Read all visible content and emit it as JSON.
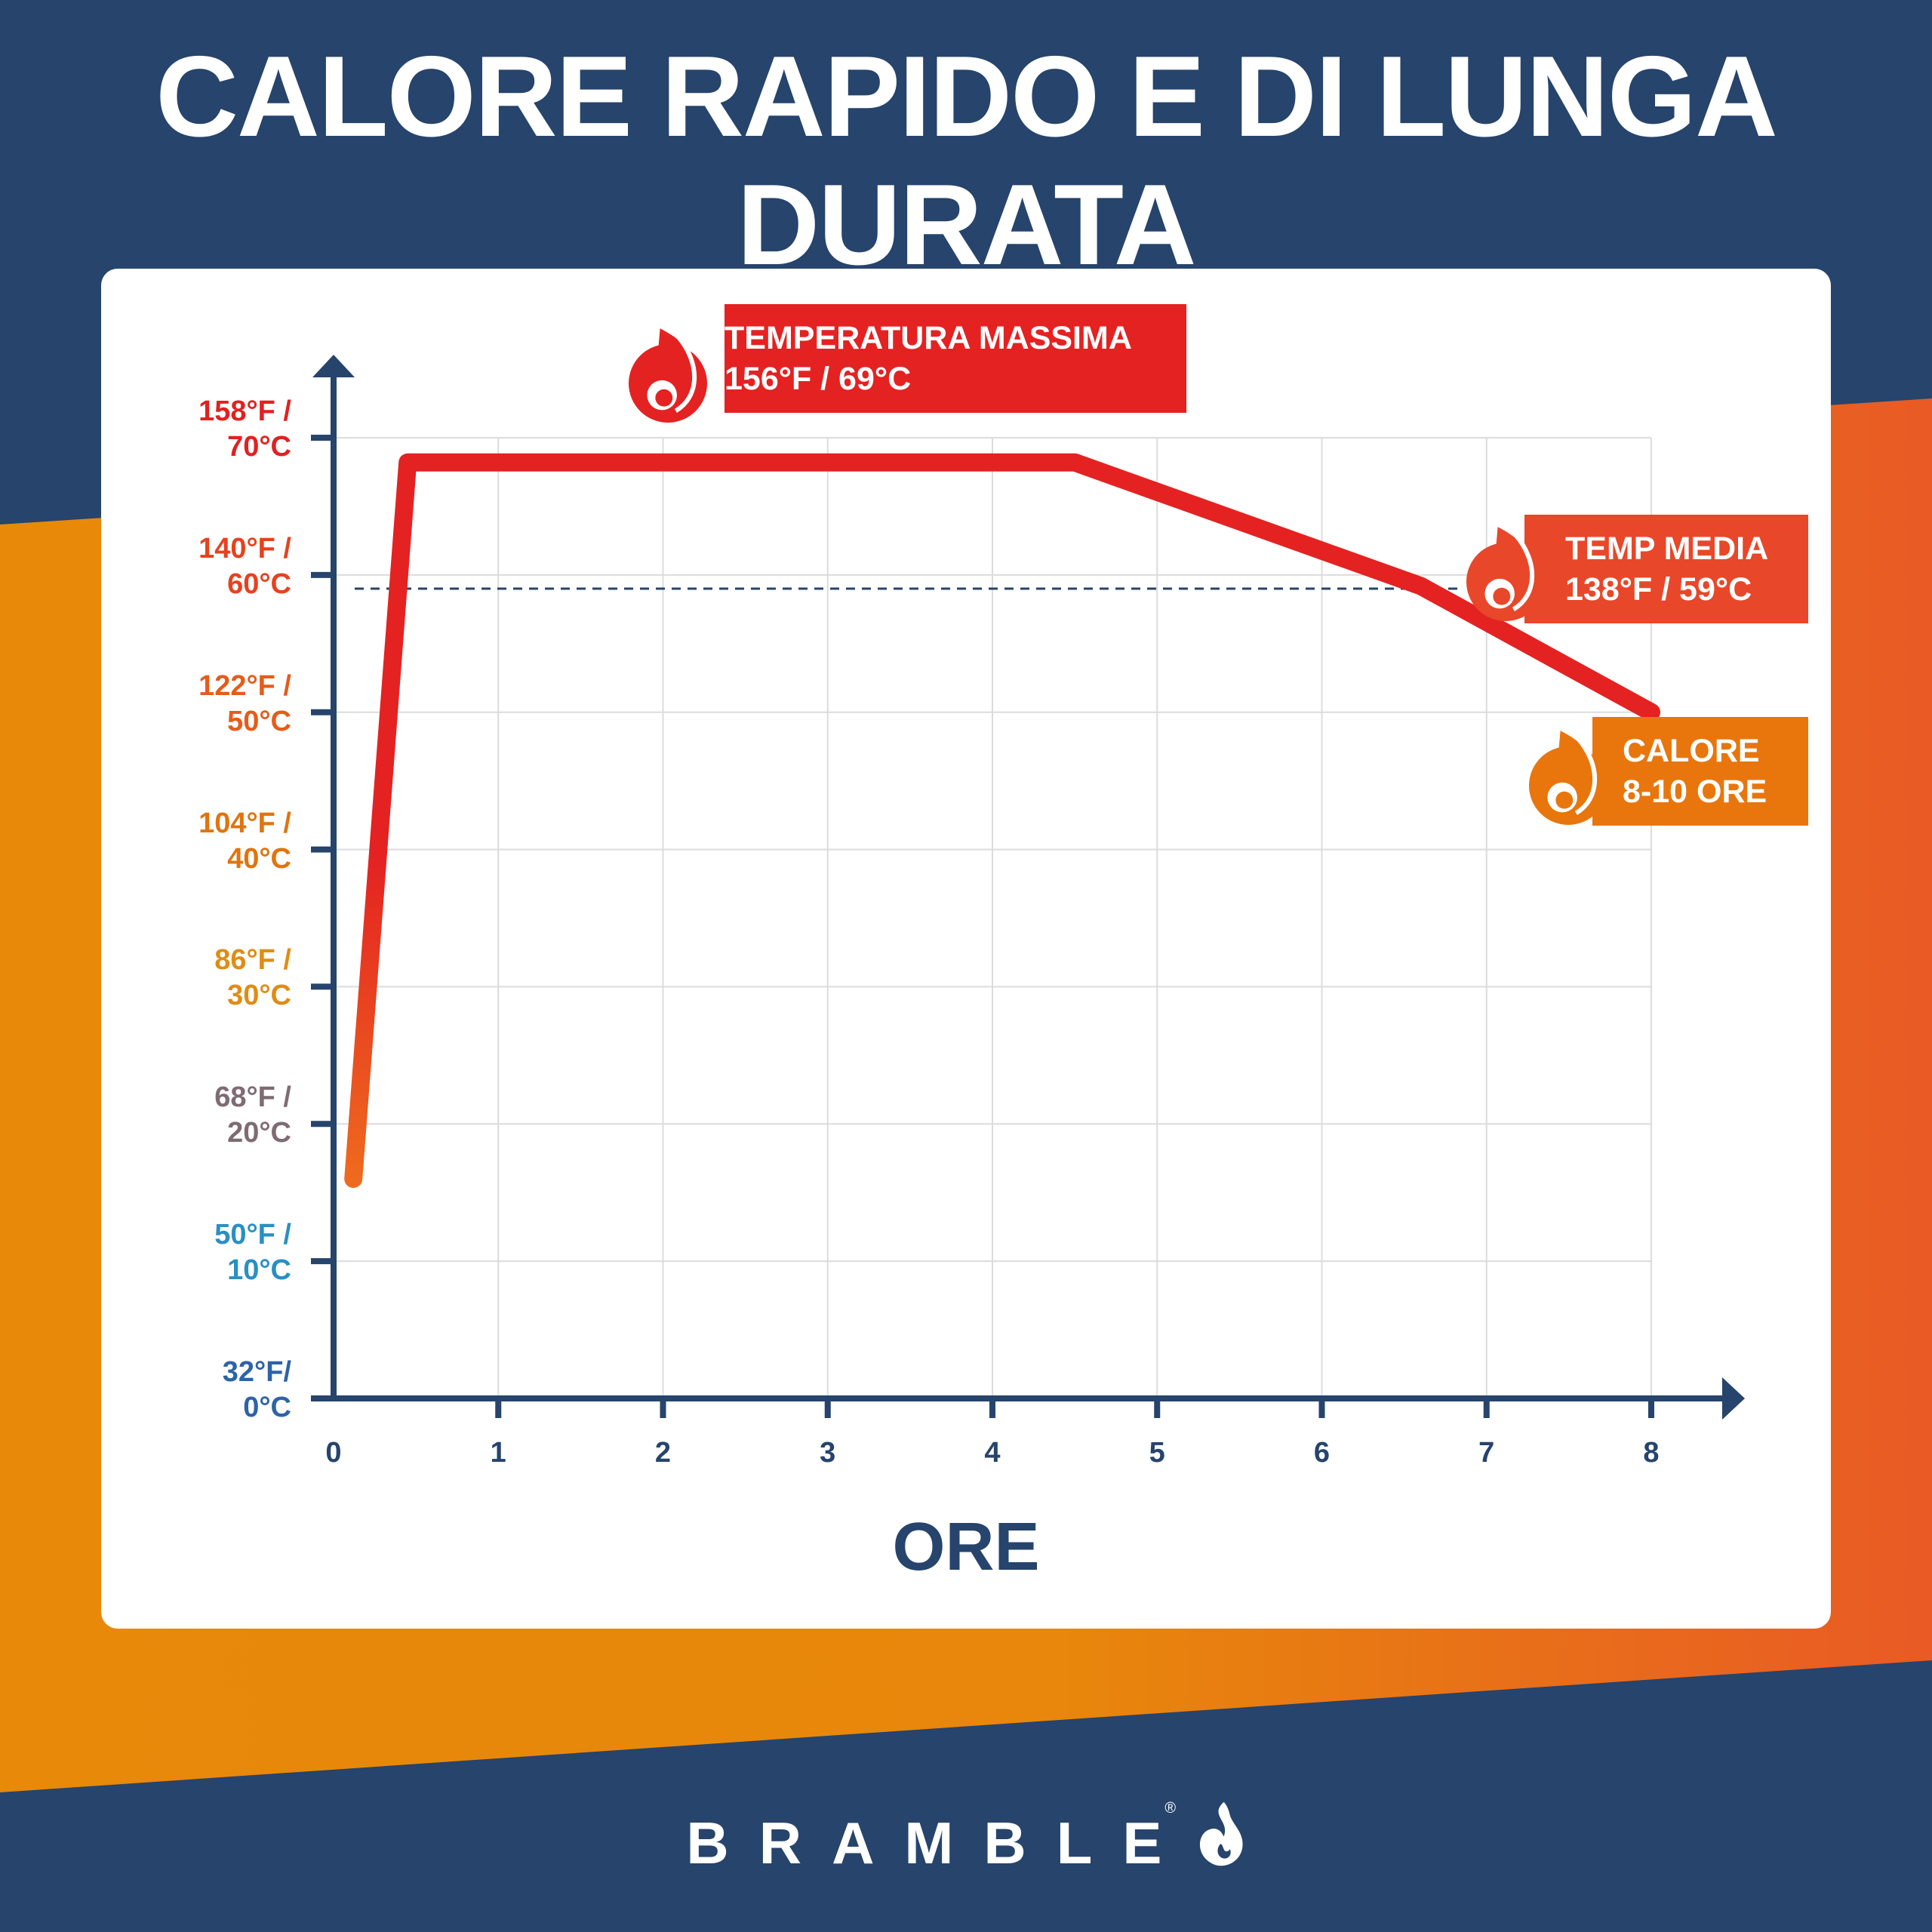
{
  "header": {
    "title_line1": "CALORE RAPIDO E DI LUNGA",
    "title_line2": "DURATA"
  },
  "colors": {
    "navy": "#26446c",
    "orange": "#e8890a",
    "red": "#e42222",
    "avg_red": "#e8472a",
    "heat_orange": "#e8760d"
  },
  "chart_data": {
    "type": "line",
    "title": "",
    "xlabel": "ORE",
    "ylabel": "",
    "x_ticks": [
      "0",
      "1",
      "2",
      "3",
      "4",
      "5",
      "6",
      "7",
      "8"
    ],
    "y_ticks": [
      {
        "f": "32°F/",
        "c": "0°C",
        "color": "#2d63a8"
      },
      {
        "f": "50°F /",
        "c": "10°C",
        "color": "#2a8fc4"
      },
      {
        "f": "68°F /",
        "c": "20°C",
        "color": "#7e6b73"
      },
      {
        "f": "86°F /",
        "c": "30°C",
        "color": "#e08c14"
      },
      {
        "f": "104°F /",
        "c": "40°C",
        "color": "#e0740f"
      },
      {
        "f": "122°F /",
        "c": "50°C",
        "color": "#e55c1a"
      },
      {
        "f": "140°F /",
        "c": "60°C",
        "color": "#e5421f"
      },
      {
        "f": "158°F /",
        "c": "70°C",
        "color": "#e12121"
      }
    ],
    "xlim": [
      0,
      8
    ],
    "ylim": [
      0,
      70
    ],
    "grid": true,
    "series": [
      {
        "x": [
          0.12,
          0.45,
          4.5,
          6.6,
          8.0
        ],
        "y": [
          16,
          68.2,
          68.2,
          59.2,
          50
        ]
      }
    ],
    "reference_line": {
      "y": 59,
      "style": "dashed"
    },
    "annotations": {
      "max": {
        "line1": "TEMPERATURA MASSIMA",
        "line2": "156°F / 69°C"
      },
      "avg": {
        "line1": "TEMP MEDIA",
        "line2": "138°F / 59°C"
      },
      "heat": {
        "line1": "CALORE",
        "line2": "8-10 ORE"
      }
    }
  },
  "footer": {
    "brand": "BRAMBLE",
    "registered": "®"
  }
}
